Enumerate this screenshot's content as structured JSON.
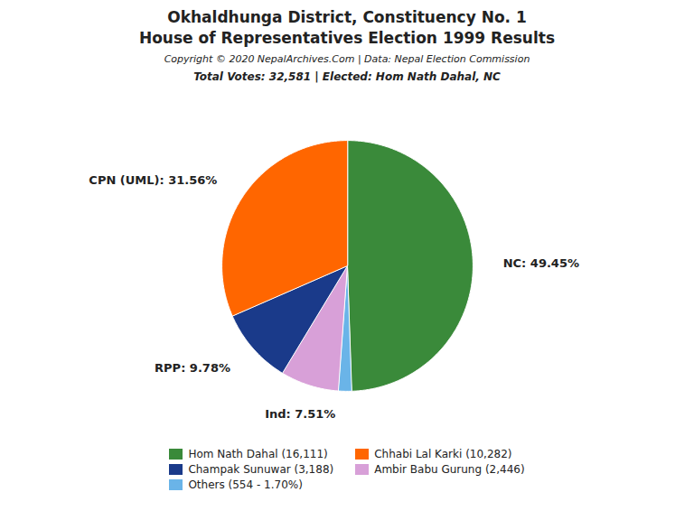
{
  "chart_data": {
    "type": "pie",
    "title": "Okhaldhunga District, Constituency No. 1\nHouse of Representatives Election 1999 Results",
    "annotations": [
      "Copyright © 2020 NepalArchives.Com | Data: Nepal Election Commission"
    ],
    "subtitle": "Total Votes: 32,581 | Elected: Hom Nath Dahal, NC",
    "categories": [
      "NC",
      "Others",
      "Ind",
      "RPP",
      "CPN (UML)"
    ],
    "values": [
      49.45,
      1.7,
      7.51,
      9.78,
      31.56
    ],
    "value_labels": [
      "NC: 49.45%",
      null,
      "Ind: 7.51%",
      "RPP: 9.78%",
      "CPN (UML): 31.56%"
    ],
    "colors": [
      "#3a8a3a",
      "#6ab4e8",
      "#D8A0D8",
      "#1a3a8a",
      "#FF6600"
    ],
    "data_labels": true,
    "legend": "bottom",
    "legend_items": [
      {
        "text": "Hom Nath Dahal (16,111)",
        "color": "#3a8a3a"
      },
      {
        "text": "Champak Sunuwar (3,188)",
        "color": "#1a3a8a"
      },
      {
        "text": "Others (554 - 1.70%)",
        "color": "#6ab4e8"
      },
      {
        "text": "Chhabi Lal Karki (10,282)",
        "color": "#FF6600"
      },
      {
        "text": "Ambir Babu Gurung (2,446)",
        "color": "#D8A0D8"
      }
    ]
  }
}
